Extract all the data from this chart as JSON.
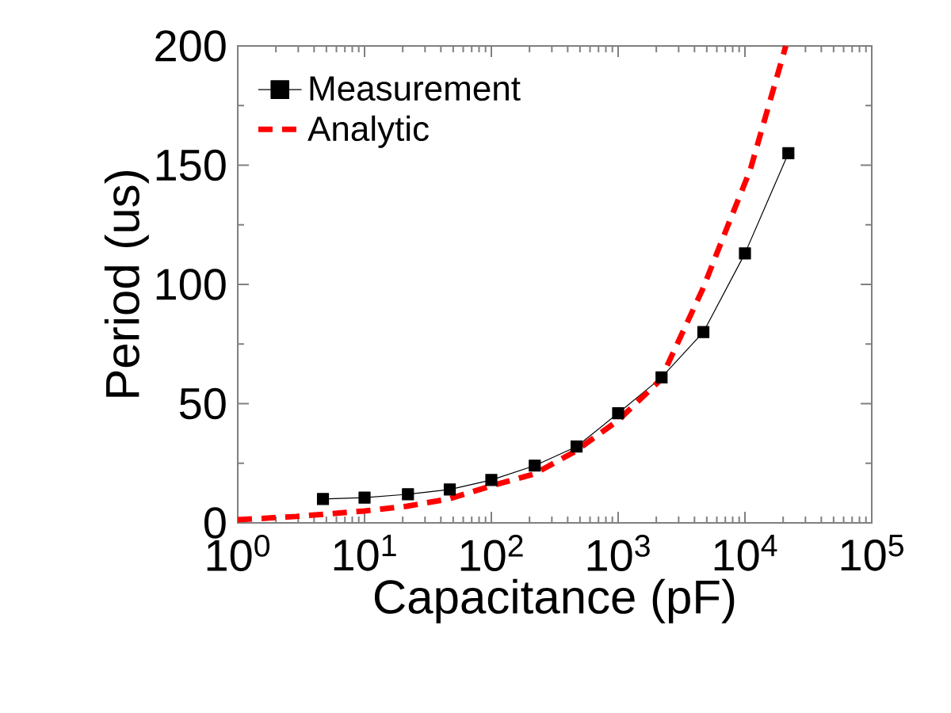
{
  "chart_data": {
    "type": "line",
    "xlabel": "Capacitance (pF)",
    "ylabel": "Period (us)",
    "log": "x",
    "xlim": [
      1,
      100000
    ],
    "ylim": [
      0,
      200
    ],
    "xticks": [
      {
        "value": 1,
        "label": "10$^{0}$"
      },
      {
        "value": 10,
        "label": "10$^{1}$"
      },
      {
        "value": 100,
        "label": "10$^{2}$"
      },
      {
        "value": 1000,
        "label": "10$^{3}$"
      },
      {
        "value": 10000,
        "label": "10$^{4}$"
      },
      {
        "value": 100000,
        "label": "10$^{5}$"
      }
    ],
    "yticks": [
      0,
      50,
      100,
      150,
      200
    ],
    "grid": false,
    "legend": "top left",
    "series": [
      {
        "name": "Measurement",
        "color": "#000000",
        "marker": "square",
        "line_style": "solid",
        "x": [
          4.7,
          10,
          22,
          47,
          100,
          220,
          470,
          1000,
          2200,
          4700,
          10000,
          22000
        ],
        "values": [
          10,
          10.6,
          12,
          14,
          18,
          24,
          32,
          46,
          61,
          80,
          113,
          155
        ]
      },
      {
        "name": "Analytic",
        "color": "#ff0000",
        "marker": "none",
        "line_style": "dashed",
        "x": [
          1,
          2.9,
          10,
          21.6,
          46,
          100,
          218,
          459,
          1000,
          2160,
          4640,
          7500,
          11000,
          21000
        ],
        "values": [
          1.3,
          2.7,
          5,
          7,
          10,
          15.5,
          20.5,
          30,
          43,
          60,
          98,
          126,
          148,
          200
        ]
      }
    ]
  }
}
